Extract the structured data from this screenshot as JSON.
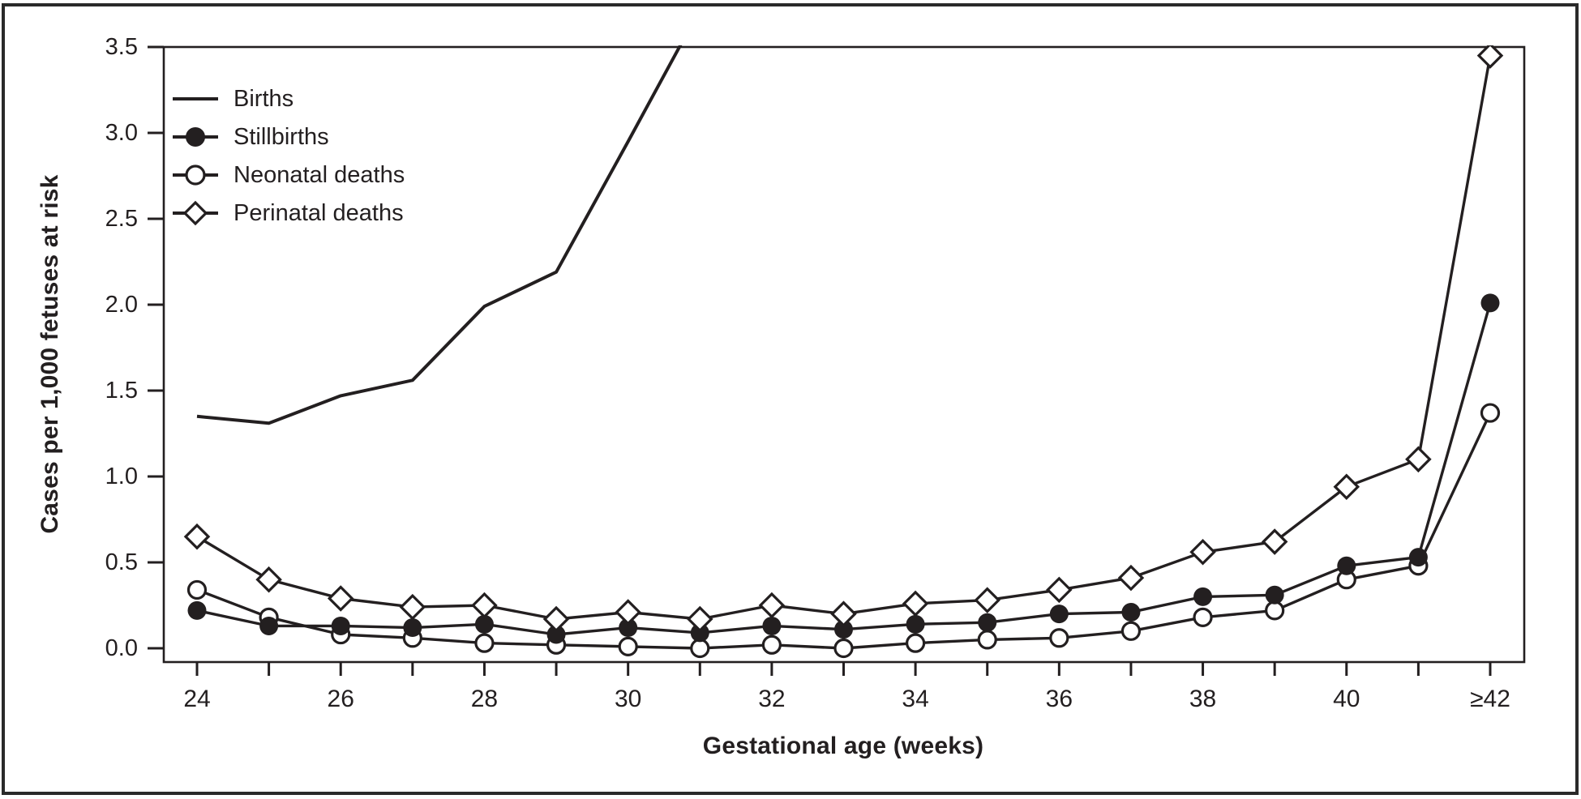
{
  "figure": {
    "background": "#ffffff",
    "ink_color": "#231f20"
  },
  "chart_data": {
    "type": "line",
    "title": "",
    "xlabel": "Gestational age (weeks)",
    "ylabel": "Cases per 1,000 fetuses at risk",
    "weeks": [
      24,
      25,
      26,
      27,
      28,
      29,
      30,
      31,
      32,
      33,
      34,
      35,
      36,
      37,
      38,
      39,
      40,
      41,
      42
    ],
    "x_tick_labels": [
      "24",
      "26",
      "28",
      "30",
      "32",
      "34",
      "36",
      "38",
      "40",
      "≥42"
    ],
    "x_ticks_every_week": true,
    "ylim": [
      0.0,
      3.5
    ],
    "yticks": [
      0.0,
      0.5,
      1.0,
      1.5,
      2.0,
      2.5,
      3.0,
      3.5
    ],
    "grid": "off",
    "legend_position": "top-left",
    "note": "Births curve rises above the y-axis maximum and is clipped at 3.5 between weeks 30 and 31",
    "series": [
      {
        "name": "Births",
        "marker": "none",
        "weeks": [
          24,
          25,
          26,
          27,
          28,
          29,
          30,
          31
        ],
        "values": [
          1.35,
          1.31,
          1.47,
          1.56,
          1.99,
          2.19,
          2.95,
          3.72
        ]
      },
      {
        "name": "Stillbirths",
        "marker": "filled-circle",
        "values": [
          0.22,
          0.13,
          0.13,
          0.12,
          0.14,
          0.08,
          0.12,
          0.09,
          0.13,
          0.11,
          0.14,
          0.15,
          0.2,
          0.21,
          0.3,
          0.31,
          0.48,
          0.53,
          2.01
        ]
      },
      {
        "name": "Neonatal deaths",
        "marker": "open-circle",
        "values": [
          0.34,
          0.18,
          0.08,
          0.06,
          0.03,
          0.02,
          0.01,
          0.0,
          0.02,
          0.0,
          0.03,
          0.05,
          0.06,
          0.1,
          0.18,
          0.22,
          0.4,
          0.48,
          1.37
        ]
      },
      {
        "name": "Perinatal deaths",
        "marker": "open-diamond",
        "values": [
          0.65,
          0.4,
          0.29,
          0.24,
          0.25,
          0.17,
          0.21,
          0.17,
          0.25,
          0.2,
          0.26,
          0.28,
          0.34,
          0.41,
          0.56,
          0.62,
          0.94,
          1.1,
          3.45
        ]
      }
    ]
  }
}
